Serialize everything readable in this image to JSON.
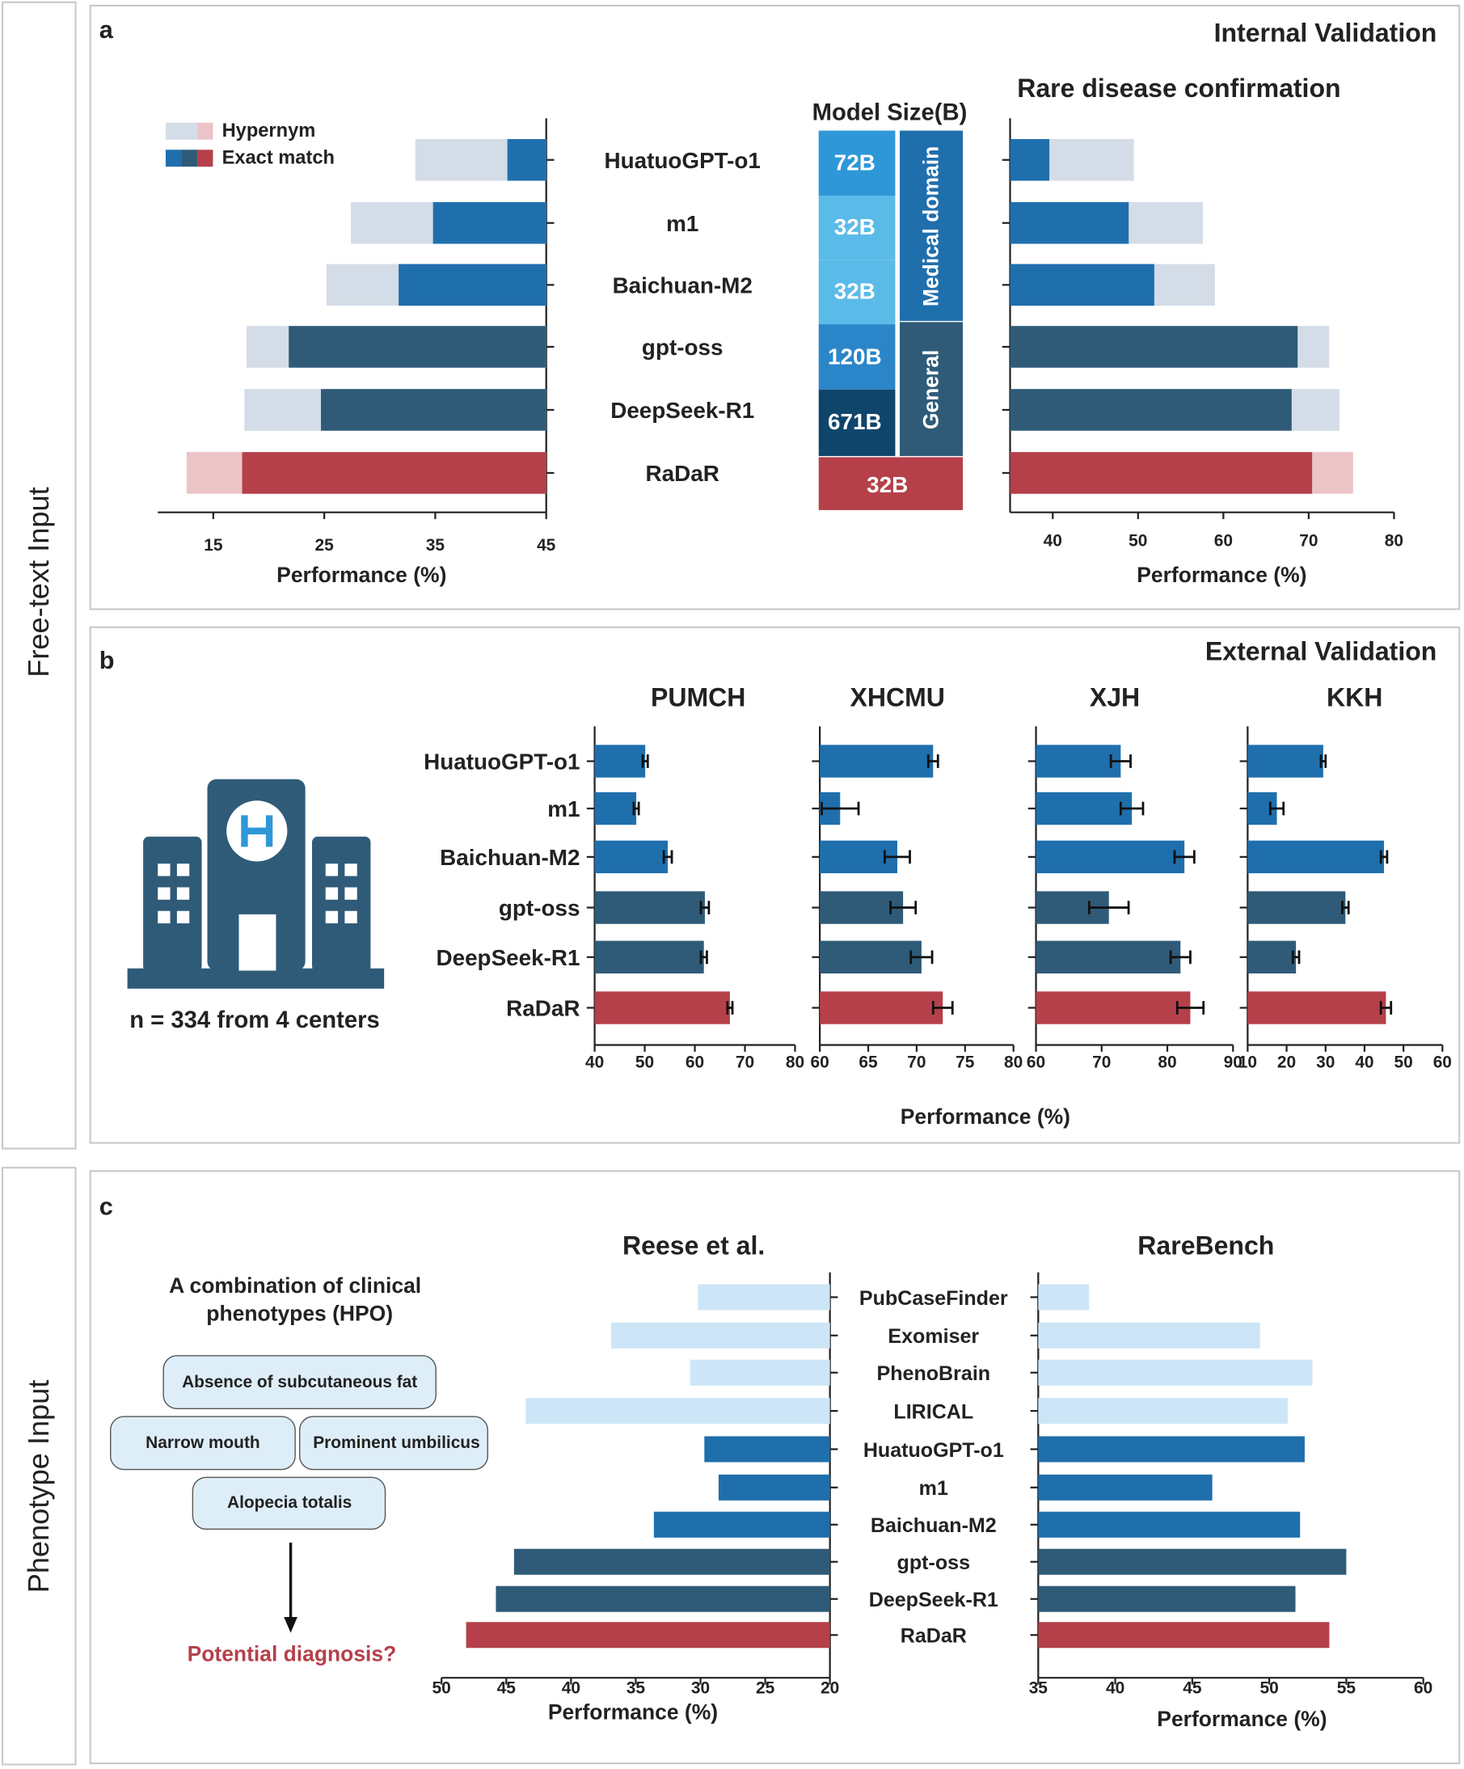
{
  "inputs": [
    "Free-text Input",
    "Phenotype Input"
  ],
  "panels": [
    {
      "label": "a",
      "heading": "Internal Validation"
    },
    {
      "label": "b",
      "heading": "External Validation",
      "x_label": "Performance (%)",
      "note": "n = 334 from 4 centers"
    },
    {
      "label": "c",
      "prompt": [
        "A combination of clinical",
        "phenotypes (HPO)"
      ],
      "phenotypes": [
        "Absence of subcutaneous fat",
        "Narrow mouth",
        "Prominent umbilicus",
        "Alopecia totalis"
      ],
      "question": "Potential diagnosis?"
    }
  ],
  "model_size": {
    "title": "Model Size(B)",
    "sizes": [
      "72B",
      "32B",
      "32B",
      "120B",
      "671B",
      "32B"
    ],
    "domains": [
      "Medical domain",
      "General"
    ]
  },
  "chart_data": [
    {
      "type": "bar",
      "x_label": "Performance (%)",
      "bars_from": "right",
      "categories": [
        "HuatuoGPT-o1",
        "m1",
        "Baichuan-M2",
        "gpt-oss",
        "DeepSeek-R1",
        "RaDaR"
      ],
      "series": [
        {
          "name": "Hypernym",
          "colors": [
            "#d4dce7",
            "#d4dce7",
            "#d4dce7",
            "#d4dce7",
            "#d4dce7",
            "#ecc3c7"
          ],
          "values": [
            33.2,
            27.4,
            25.2,
            18.0,
            17.8,
            12.6
          ]
        },
        {
          "name": "Exact match",
          "colors": [
            "#1f6fad",
            "#1f6fad",
            "#1f6fad",
            "#2f5b78",
            "#2f5b78",
            "#b5404a"
          ],
          "values": [
            41.5,
            34.8,
            31.7,
            21.8,
            24.7,
            17.6
          ]
        }
      ],
      "xlim": [
        10,
        45
      ],
      "xticks": [
        15,
        25,
        35,
        45
      ]
    },
    {
      "type": "bar",
      "title": "Rare disease confirmation",
      "x_label": "Performance (%)",
      "series": [
        {
          "colors": [
            "#d4dce7",
            "#d4dce7",
            "#d4dce7",
            "#d4dce7",
            "#d4dce7",
            "#ecc3c7"
          ],
          "values": [
            49.5,
            57.6,
            59.0,
            72.4,
            73.6,
            75.2
          ]
        },
        {
          "colors": [
            "#1f6fad",
            "#1f6fad",
            "#1f6fad",
            "#2f5b78",
            "#2f5b78",
            "#b5404a"
          ],
          "values": [
            39.6,
            48.9,
            51.9,
            68.7,
            68.0,
            70.4
          ]
        }
      ],
      "xlim": [
        35,
        80
      ],
      "xticks": [
        40,
        50,
        60,
        70,
        80
      ]
    },
    {
      "type": "bar",
      "title": "PUMCH",
      "categories": [
        "HuatuoGPT-o1",
        "m1",
        "Baichuan-M2",
        "gpt-oss",
        "DeepSeek-R1",
        "RaDaR"
      ],
      "colors": [
        "#1f6fad",
        "#1f6fad",
        "#1f6fad",
        "#2f5b78",
        "#2f5b78",
        "#b5404a"
      ],
      "values": [
        50.1,
        48.3,
        54.6,
        62.0,
        61.8,
        67.0
      ],
      "errors": [
        0.5,
        0.5,
        0.8,
        0.8,
        0.6,
        0.5
      ],
      "xlim": [
        40,
        80
      ],
      "xticks": [
        40,
        50,
        60,
        70,
        80
      ]
    },
    {
      "type": "bar",
      "title": "XHCMU",
      "colors": [
        "#1f6fad",
        "#1f6fad",
        "#1f6fad",
        "#2f5b78",
        "#2f5b78",
        "#b5404a"
      ],
      "values": [
        71.7,
        62.1,
        68.0,
        68.6,
        70.5,
        72.7
      ],
      "errors": [
        0.5,
        1.9,
        1.3,
        1.3,
        1.1,
        1.0
      ],
      "xlim": [
        60,
        80
      ],
      "xticks": [
        60,
        65,
        70,
        75,
        80
      ]
    },
    {
      "type": "bar",
      "title": "XJH",
      "colors": [
        "#1f6fad",
        "#1f6fad",
        "#1f6fad",
        "#2f5b78",
        "#2f5b78",
        "#b5404a"
      ],
      "values": [
        72.9,
        74.6,
        82.6,
        71.1,
        82.0,
        83.5
      ],
      "errors": [
        1.5,
        1.7,
        1.5,
        3.0,
        1.5,
        2.0
      ],
      "xlim": [
        60,
        90
      ],
      "xticks": [
        60,
        70,
        80,
        90
      ]
    },
    {
      "type": "bar",
      "title": "KKH",
      "colors": [
        "#1f6fad",
        "#1f6fad",
        "#1f6fad",
        "#2f5b78",
        "#2f5b78",
        "#b5404a"
      ],
      "values": [
        29.4,
        17.5,
        45.0,
        35.1,
        22.4,
        45.5
      ],
      "errors": [
        0.6,
        1.7,
        0.8,
        0.8,
        0.8,
        1.3
      ],
      "xlim": [
        10,
        60
      ],
      "xticks": [
        10,
        20,
        30,
        40,
        50,
        60
      ]
    },
    {
      "type": "bar",
      "title": "Reese et al.",
      "x_label": "Performance (%)",
      "x_reversed": true,
      "categories": [
        "PubCaseFinder",
        "Exomiser",
        "PhenoBrain",
        "LIRICAL",
        "HuatuoGPT-o1",
        "m1",
        "Baichuan-M2",
        "gpt-oss",
        "DeepSeek-R1",
        "RaDaR"
      ],
      "colors": [
        "#cde6f7",
        "#cde6f7",
        "#cde6f7",
        "#cde6f7",
        "#1f6fad",
        "#1f6fad",
        "#1f6fad",
        "#2f5b78",
        "#2f5b78",
        "#b5404a"
      ],
      "values": [
        30.2,
        36.9,
        30.8,
        43.5,
        29.7,
        28.6,
        33.6,
        44.4,
        45.8,
        48.1
      ],
      "xlim": [
        20,
        50
      ],
      "xticks": [
        50,
        45,
        40,
        35,
        30,
        25,
        20
      ]
    },
    {
      "type": "bar",
      "title": "RareBench",
      "x_label": "Performance (%)",
      "colors": [
        "#cde6f7",
        "#cde6f7",
        "#cde6f7",
        "#cde6f7",
        "#1f6fad",
        "#1f6fad",
        "#1f6fad",
        "#2f5b78",
        "#2f5b78",
        "#b5404a"
      ],
      "values": [
        38.3,
        49.4,
        52.8,
        51.2,
        52.3,
        46.3,
        52.0,
        55.0,
        51.7,
        53.9
      ],
      "xlim": [
        35,
        60
      ],
      "xticks": [
        35,
        40,
        45,
        50,
        55,
        60
      ]
    }
  ]
}
